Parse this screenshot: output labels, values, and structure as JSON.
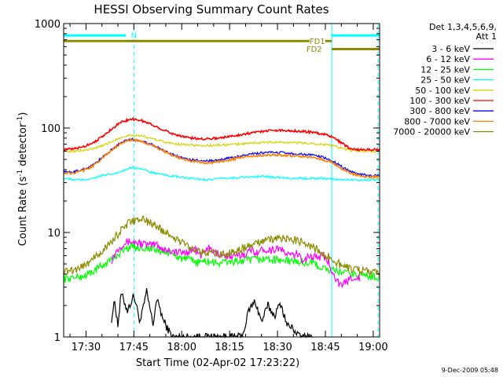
{
  "chart_data": {
    "type": "line",
    "title": "HESSI Observing Summary Count Rates",
    "xlabel": "Start Time (02-Apr-02 17:23:22)",
    "ylabel": "Count Rate (s",
    "ylabel_super": "-1",
    "ylabel_tail": " detector",
    "ylabel_end": ")",
    "x_unit": "minutes since 17:23:22",
    "x_range": [
      0,
      99
    ],
    "y_scale": "log",
    "y_range": [
      1,
      1000
    ],
    "x_ticks": [
      {
        "t": 7,
        "label": "17:30"
      },
      {
        "t": 22,
        "label": "17:45"
      },
      {
        "t": 37,
        "label": "18:00"
      },
      {
        "t": 52,
        "label": "18:15"
      },
      {
        "t": 67,
        "label": "18:30"
      },
      {
        "t": 82,
        "label": "18:45"
      },
      {
        "t": 97,
        "label": "19:00"
      }
    ],
    "y_ticks": [
      {
        "v": 1,
        "label": "1"
      },
      {
        "v": 10,
        "label": "10"
      },
      {
        "v": 100,
        "label": "100"
      },
      {
        "v": 1000,
        "label": "1000"
      }
    ],
    "legend_header": [
      "Det 1,3,4,5,6,9,",
      "Att 1"
    ],
    "legend_position": "top-right",
    "series": [
      {
        "name": "3 - 6 keV",
        "color": "#000000",
        "t": [
          15,
          16,
          17,
          18,
          20,
          22,
          24,
          26,
          27,
          28,
          29,
          30,
          31,
          32,
          34,
          36,
          38,
          40,
          42,
          44,
          46,
          48,
          50,
          52,
          54,
          56,
          58,
          60,
          62,
          64,
          66,
          68,
          70,
          72,
          74,
          76,
          78
        ],
        "y": [
          1.5,
          2.2,
          1.3,
          2.6,
          1.8,
          2.5,
          1.4,
          2.7,
          1.9,
          1.3,
          2.2,
          2.0,
          1.5,
          1.3,
          1.0,
          1.0,
          1.0,
          1.0,
          1.0,
          1.0,
          1.0,
          1.0,
          1.0,
          1.0,
          1.0,
          1.0,
          1.8,
          2.2,
          1.4,
          2.0,
          1.6,
          2.1,
          1.3,
          1.2,
          1.0,
          1.0,
          1.0
        ]
      },
      {
        "name": "6 - 12 keV",
        "color": "#ff00ff",
        "t": [
          15,
          17,
          19,
          21,
          23,
          25,
          27,
          29,
          31,
          33,
          35,
          37,
          39,
          41,
          43,
          45,
          47,
          49,
          51,
          53,
          55,
          57,
          59,
          61,
          63,
          65,
          67,
          69,
          71,
          73,
          75,
          77,
          79,
          81,
          83,
          85,
          87,
          89,
          91,
          93
        ],
        "y": [
          5.5,
          7.0,
          8.0,
          8.2,
          8.0,
          7.8,
          7.5,
          7.8,
          7.0,
          6.8,
          6.5,
          6.4,
          6.6,
          7.0,
          6.0,
          7.2,
          6.5,
          6.2,
          6.0,
          5.8,
          6.0,
          6.3,
          6.8,
          6.5,
          7.0,
          6.8,
          7.2,
          6.5,
          6.0,
          6.2,
          5.5,
          6.0,
          5.8,
          6.0,
          5.2,
          3.8,
          3.0,
          3.5,
          3.8,
          3.6
        ]
      },
      {
        "name": "12 - 25 keV",
        "color": "#00ff00",
        "t": [
          0,
          3,
          6,
          9,
          12,
          15,
          18,
          21,
          24,
          27,
          30,
          33,
          36,
          39,
          42,
          45,
          48,
          51,
          54,
          57,
          60,
          63,
          66,
          69,
          72,
          75,
          78,
          81,
          84,
          87,
          90,
          93,
          96,
          99
        ],
        "y": [
          3.6,
          3.7,
          3.8,
          4.2,
          4.8,
          5.5,
          6.6,
          7.4,
          7.2,
          7.0,
          6.7,
          6.3,
          5.8,
          5.5,
          5.2,
          5.3,
          5.1,
          5.2,
          5.3,
          5.4,
          5.5,
          5.6,
          5.5,
          5.4,
          5.3,
          5.2,
          5.1,
          4.6,
          4.3,
          4.2,
          4.0,
          3.9,
          3.8,
          3.8
        ]
      },
      {
        "name": "25 - 50 keV",
        "color": "#00ffff",
        "t": [
          0,
          3,
          6,
          9,
          12,
          15,
          18,
          21,
          24,
          27,
          30,
          33,
          36,
          39,
          42,
          45,
          48,
          51,
          54,
          57,
          60,
          63,
          66,
          69,
          72,
          75,
          78,
          81,
          84,
          87,
          90,
          93,
          96,
          99
        ],
        "y": [
          33,
          32,
          32,
          33,
          35,
          36,
          38,
          42,
          41,
          38,
          36,
          35,
          34,
          33,
          32.5,
          32,
          32.5,
          33,
          33.5,
          34,
          34,
          34.5,
          34,
          33.5,
          33,
          33,
          33,
          33,
          32.5,
          32,
          32,
          32,
          32,
          32
        ]
      },
      {
        "name": "50 - 100 keV",
        "color": "#d4d400",
        "t": [
          0,
          3,
          6,
          9,
          12,
          15,
          18,
          21,
          24,
          27,
          30,
          33,
          36,
          39,
          42,
          45,
          48,
          51,
          54,
          57,
          60,
          63,
          66,
          69,
          72,
          75,
          78,
          81,
          84,
          87,
          90,
          93,
          96,
          99
        ],
        "y": [
          60,
          60,
          61,
          63,
          67,
          74,
          82,
          86,
          84,
          80,
          76,
          72,
          70,
          69,
          68,
          68,
          68.5,
          69,
          70,
          71,
          72,
          73,
          73,
          73,
          72,
          72,
          71,
          70,
          68,
          64,
          61,
          60,
          60,
          60
        ]
      },
      {
        "name": "100 - 300 keV",
        "color": "#ff0000",
        "t": [
          0,
          3,
          6,
          9,
          12,
          15,
          18,
          21,
          24,
          27,
          30,
          33,
          36,
          39,
          42,
          45,
          48,
          51,
          54,
          57,
          60,
          63,
          66,
          69,
          72,
          75,
          78,
          81,
          84,
          87,
          90,
          93,
          96,
          99
        ],
        "y": [
          62,
          63,
          66,
          72,
          82,
          98,
          114,
          122,
          119,
          110,
          100,
          91,
          85,
          81,
          79,
          79,
          80,
          82,
          85,
          88,
          91,
          94,
          95,
          95,
          94,
          93,
          91,
          88,
          83,
          72,
          63,
          62,
          62,
          62
        ]
      },
      {
        "name": "300 - 800 keV",
        "color": "#0000ff",
        "t": [
          0,
          3,
          6,
          9,
          12,
          15,
          18,
          21,
          24,
          27,
          30,
          33,
          36,
          39,
          42,
          45,
          48,
          51,
          54,
          57,
          60,
          63,
          66,
          69,
          72,
          75,
          78,
          81,
          84,
          87,
          90,
          93,
          96,
          99
        ],
        "y": [
          38,
          38,
          40,
          44,
          52,
          62,
          73,
          78,
          76,
          71,
          64,
          58,
          53,
          50,
          49,
          48.5,
          49,
          51,
          53,
          55,
          57,
          58,
          58.5,
          58,
          57,
          56,
          55,
          53,
          49,
          43,
          38,
          36,
          35,
          35
        ]
      },
      {
        "name": "800 - 7000 keV",
        "color": "#ff8000",
        "t": [
          0,
          3,
          6,
          9,
          12,
          15,
          18,
          21,
          24,
          27,
          30,
          33,
          36,
          39,
          42,
          45,
          48,
          51,
          54,
          57,
          60,
          63,
          66,
          69,
          72,
          75,
          78,
          81,
          84,
          87,
          90,
          93,
          96,
          99
        ],
        "y": [
          37,
          37,
          39,
          43,
          51,
          61,
          72,
          77,
          75,
          70,
          63,
          57,
          52,
          49,
          47,
          46.5,
          47,
          49,
          51,
          53,
          54,
          55,
          55.5,
          55,
          54,
          53,
          52,
          50,
          47,
          41,
          37,
          35,
          34,
          34
        ]
      },
      {
        "name": "7000 - 20000 keV",
        "color": "#8b8b00",
        "t": [
          0,
          3,
          6,
          9,
          12,
          15,
          18,
          21,
          24,
          27,
          30,
          33,
          36,
          39,
          42,
          45,
          48,
          51,
          54,
          57,
          60,
          63,
          66,
          69,
          72,
          75,
          78,
          81,
          84,
          87,
          90,
          93,
          96,
          99
        ],
        "y": [
          4.2,
          4.4,
          4.8,
          5.5,
          6.6,
          8.2,
          10.5,
          12.8,
          13.5,
          12.5,
          11.0,
          9.6,
          8.4,
          7.4,
          6.8,
          6.4,
          6.2,
          6.3,
          6.6,
          7.2,
          7.8,
          8.3,
          8.7,
          8.8,
          8.6,
          8.0,
          7.3,
          6.5,
          5.6,
          4.9,
          4.5,
          4.3,
          4.2,
          4.2
        ]
      }
    ],
    "annotations": [
      {
        "label": "N",
        "t_start": 0,
        "t_end": 21,
        "color": "#00ffff",
        "level": 770,
        "label_t": 22
      },
      {
        "label": "",
        "t_start": 84,
        "t_end": 99,
        "color": "#00ffff",
        "level": 770
      },
      {
        "label": "FD1",
        "t_start": 0,
        "t_end": 84,
        "color": "#8b8b00",
        "level": 680,
        "label_t": 79.5
      },
      {
        "label": "FD2",
        "t_start": 84,
        "t_end": 99,
        "color": "#8b8b00",
        "level": 570,
        "label_t": 78.5
      }
    ],
    "vlines": [
      {
        "t": 0,
        "color": "#00ffff",
        "style": "solid"
      },
      {
        "t": 22,
        "color": "#00ffff",
        "style": "dashed"
      },
      {
        "t": 84,
        "color": "#00ffff",
        "style": "solid"
      },
      {
        "t": 98.5,
        "color": "#00ffff",
        "style": "dashed"
      }
    ]
  },
  "footer_stamp": "9-Dec-2009 05:48"
}
